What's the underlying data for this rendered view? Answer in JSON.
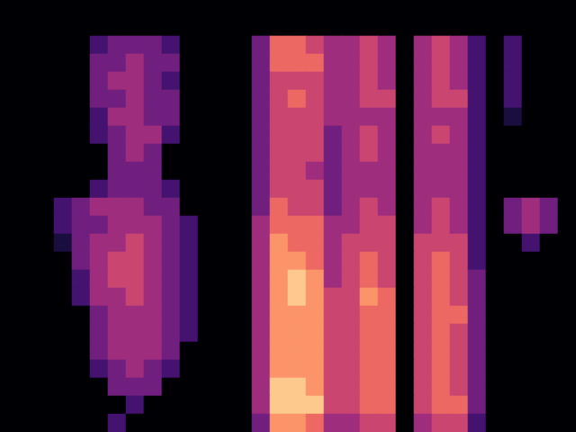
{
  "chart_data": {
    "type": "heatmap",
    "color": "magma",
    "tick_labels": false,
    "grid": false,
    "zlim": [
      0,
      9
    ],
    "cells": [
      [
        0,
        0,
        0,
        0,
        0,
        0,
        0,
        0,
        0,
        0,
        0,
        0,
        0,
        0,
        0,
        0,
        0,
        0,
        0,
        0,
        0,
        0,
        0,
        0,
        0,
        0,
        0,
        0,
        0,
        0,
        0,
        0
      ],
      [
        0,
        0,
        0,
        0,
        0,
        0,
        0,
        0,
        0,
        0,
        0,
        0,
        0,
        0,
        0,
        0,
        0,
        0,
        0,
        0,
        0,
        0,
        0,
        0,
        0,
        0,
        0,
        0,
        0,
        0,
        0,
        0
      ],
      [
        0,
        0,
        0,
        0,
        0,
        2,
        3,
        3,
        3,
        2,
        0,
        0,
        0,
        0,
        3,
        6,
        6,
        5,
        4,
        4,
        5,
        4,
        0,
        4,
        5,
        4,
        2,
        0,
        2,
        0,
        0,
        0
      ],
      [
        0,
        0,
        0,
        0,
        0,
        3,
        3,
        4,
        3,
        3,
        0,
        0,
        0,
        0,
        3,
        6,
        6,
        6,
        4,
        4,
        5,
        4,
        0,
        4,
        5,
        4,
        2,
        0,
        2,
        0,
        0,
        0
      ],
      [
        0,
        0,
        0,
        0,
        0,
        3,
        4,
        4,
        3,
        2,
        0,
        0,
        0,
        0,
        3,
        5,
        5,
        5,
        4,
        4,
        5,
        4,
        0,
        4,
        5,
        4,
        2,
        0,
        2,
        0,
        0,
        0
      ],
      [
        0,
        0,
        0,
        0,
        0,
        3,
        3,
        4,
        3,
        3,
        0,
        0,
        0,
        0,
        3,
        5,
        6,
        5,
        4,
        4,
        5,
        5,
        0,
        4,
        5,
        5,
        2,
        0,
        2,
        0,
        0,
        0
      ],
      [
        0,
        0,
        0,
        0,
        0,
        2,
        4,
        4,
        3,
        3,
        0,
        0,
        0,
        0,
        3,
        5,
        5,
        5,
        4,
        4,
        4,
        4,
        0,
        4,
        4,
        4,
        2,
        0,
        1,
        0,
        0,
        0
      ],
      [
        0,
        0,
        0,
        0,
        0,
        2,
        3,
        4,
        4,
        2,
        0,
        0,
        0,
        0,
        3,
        5,
        5,
        5,
        3,
        4,
        5,
        4,
        0,
        4,
        5,
        4,
        2,
        0,
        0,
        0,
        0,
        0
      ],
      [
        0,
        0,
        0,
        0,
        0,
        0,
        3,
        4,
        3,
        0,
        0,
        0,
        0,
        0,
        3,
        5,
        5,
        5,
        3,
        4,
        5,
        4,
        0,
        4,
        4,
        4,
        2,
        0,
        0,
        0,
        0,
        0
      ],
      [
        0,
        0,
        0,
        0,
        0,
        0,
        3,
        3,
        3,
        0,
        0,
        0,
        0,
        0,
        3,
        5,
        5,
        4,
        3,
        4,
        4,
        4,
        0,
        4,
        4,
        4,
        2,
        0,
        0,
        0,
        0,
        0
      ],
      [
        0,
        0,
        0,
        0,
        0,
        2,
        3,
        3,
        3,
        2,
        0,
        0,
        0,
        0,
        3,
        5,
        5,
        5,
        3,
        4,
        4,
        4,
        0,
        4,
        4,
        4,
        2,
        0,
        0,
        0,
        0,
        0
      ],
      [
        0,
        0,
        0,
        2,
        3,
        4,
        4,
        4,
        3,
        3,
        0,
        0,
        0,
        0,
        3,
        6,
        5,
        5,
        3,
        4,
        5,
        4,
        0,
        4,
        5,
        4,
        2,
        0,
        3,
        4,
        3,
        0
      ],
      [
        0,
        0,
        0,
        2,
        3,
        3,
        4,
        4,
        4,
        3,
        2,
        0,
        0,
        0,
        4,
        6,
        6,
        6,
        4,
        4,
        5,
        5,
        0,
        4,
        5,
        4,
        2,
        0,
        3,
        4,
        3,
        0
      ],
      [
        0,
        0,
        0,
        1,
        3,
        4,
        4,
        5,
        4,
        3,
        2,
        0,
        0,
        0,
        4,
        7,
        6,
        6,
        4,
        5,
        5,
        5,
        0,
        5,
        5,
        5,
        2,
        0,
        0,
        2,
        0,
        0
      ],
      [
        0,
        0,
        0,
        0,
        3,
        4,
        5,
        5,
        4,
        3,
        2,
        0,
        0,
        0,
        4,
        7,
        7,
        6,
        4,
        5,
        6,
        5,
        0,
        5,
        6,
        5,
        2,
        0,
        0,
        0,
        0,
        0
      ],
      [
        0,
        0,
        0,
        0,
        2,
        4,
        5,
        5,
        4,
        3,
        2,
        0,
        0,
        0,
        4,
        7,
        8,
        7,
        4,
        5,
        6,
        5,
        0,
        5,
        6,
        5,
        3,
        0,
        0,
        0,
        0,
        0
      ],
      [
        0,
        0,
        0,
        0,
        2,
        4,
        4,
        5,
        4,
        3,
        2,
        0,
        0,
        0,
        4,
        7,
        8,
        7,
        5,
        5,
        7,
        6,
        0,
        5,
        6,
        5,
        3,
        0,
        0,
        0,
        0,
        0
      ],
      [
        0,
        0,
        0,
        0,
        0,
        3,
        4,
        4,
        4,
        3,
        2,
        0,
        0,
        0,
        4,
        7,
        7,
        7,
        5,
        5,
        6,
        6,
        0,
        5,
        6,
        6,
        3,
        0,
        0,
        0,
        0,
        0
      ],
      [
        0,
        0,
        0,
        0,
        0,
        3,
        4,
        4,
        4,
        3,
        2,
        0,
        0,
        0,
        4,
        7,
        7,
        7,
        5,
        5,
        6,
        6,
        0,
        5,
        6,
        5,
        3,
        0,
        0,
        0,
        0,
        0
      ],
      [
        0,
        0,
        0,
        0,
        0,
        3,
        4,
        4,
        4,
        3,
        0,
        0,
        0,
        0,
        4,
        7,
        7,
        7,
        5,
        5,
        6,
        6,
        0,
        5,
        6,
        5,
        3,
        0,
        0,
        0,
        0,
        0
      ],
      [
        0,
        0,
        0,
        0,
        0,
        2,
        3,
        4,
        3,
        2,
        0,
        0,
        0,
        0,
        4,
        7,
        7,
        7,
        5,
        5,
        6,
        6,
        0,
        5,
        6,
        5,
        3,
        0,
        0,
        0,
        0,
        0
      ],
      [
        0,
        0,
        0,
        0,
        0,
        0,
        3,
        3,
        3,
        0,
        0,
        0,
        0,
        0,
        4,
        8,
        8,
        7,
        5,
        5,
        6,
        6,
        0,
        5,
        6,
        5,
        3,
        0,
        0,
        0,
        0,
        0
      ],
      [
        0,
        0,
        0,
        0,
        0,
        0,
        0,
        2,
        0,
        0,
        0,
        0,
        0,
        0,
        4,
        8,
        8,
        8,
        5,
        5,
        6,
        6,
        0,
        5,
        6,
        6,
        3,
        0,
        0,
        0,
        0,
        0
      ],
      [
        0,
        0,
        0,
        0,
        0,
        0,
        2,
        0,
        0,
        0,
        0,
        0,
        0,
        0,
        3,
        7,
        7,
        6,
        4,
        4,
        5,
        5,
        0,
        4,
        5,
        5,
        2,
        0,
        0,
        0,
        0,
        0
      ]
    ]
  }
}
